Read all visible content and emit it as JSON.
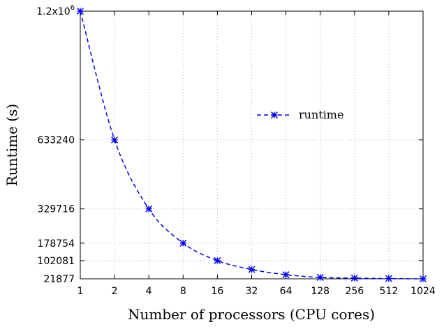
{
  "chart_data": {
    "type": "line",
    "title": "",
    "xlabel": "Number of processors (CPU cores)",
    "ylabel": "Runtime (s)",
    "x_scale": "log2",
    "x": [
      1,
      2,
      4,
      8,
      16,
      32,
      64,
      128,
      256,
      512,
      1024
    ],
    "x_tick_labels": [
      "1",
      "2",
      "4",
      "8",
      "16",
      "32",
      "64",
      "128",
      "256",
      "512",
      "1024"
    ],
    "y_ticks": [
      21877,
      102081,
      178754,
      329716,
      633240,
      1200000
    ],
    "y_tick_labels": [
      "21877",
      "102081",
      "178754",
      "329716",
      "633240",
      "1.2x10"
    ],
    "y_top_label_exponent": "6",
    "ylim": [
      21877,
      1200000
    ],
    "grid": true,
    "legend_position": "top-right",
    "series": [
      {
        "name": "runtime",
        "color": "#0000ee",
        "line_style": "dashed",
        "marker": "asterisk",
        "values": [
          1200000,
          633240,
          329716,
          178754,
          102081,
          63000,
          40000,
          28000,
          25000,
          23000,
          21877
        ]
      }
    ]
  }
}
